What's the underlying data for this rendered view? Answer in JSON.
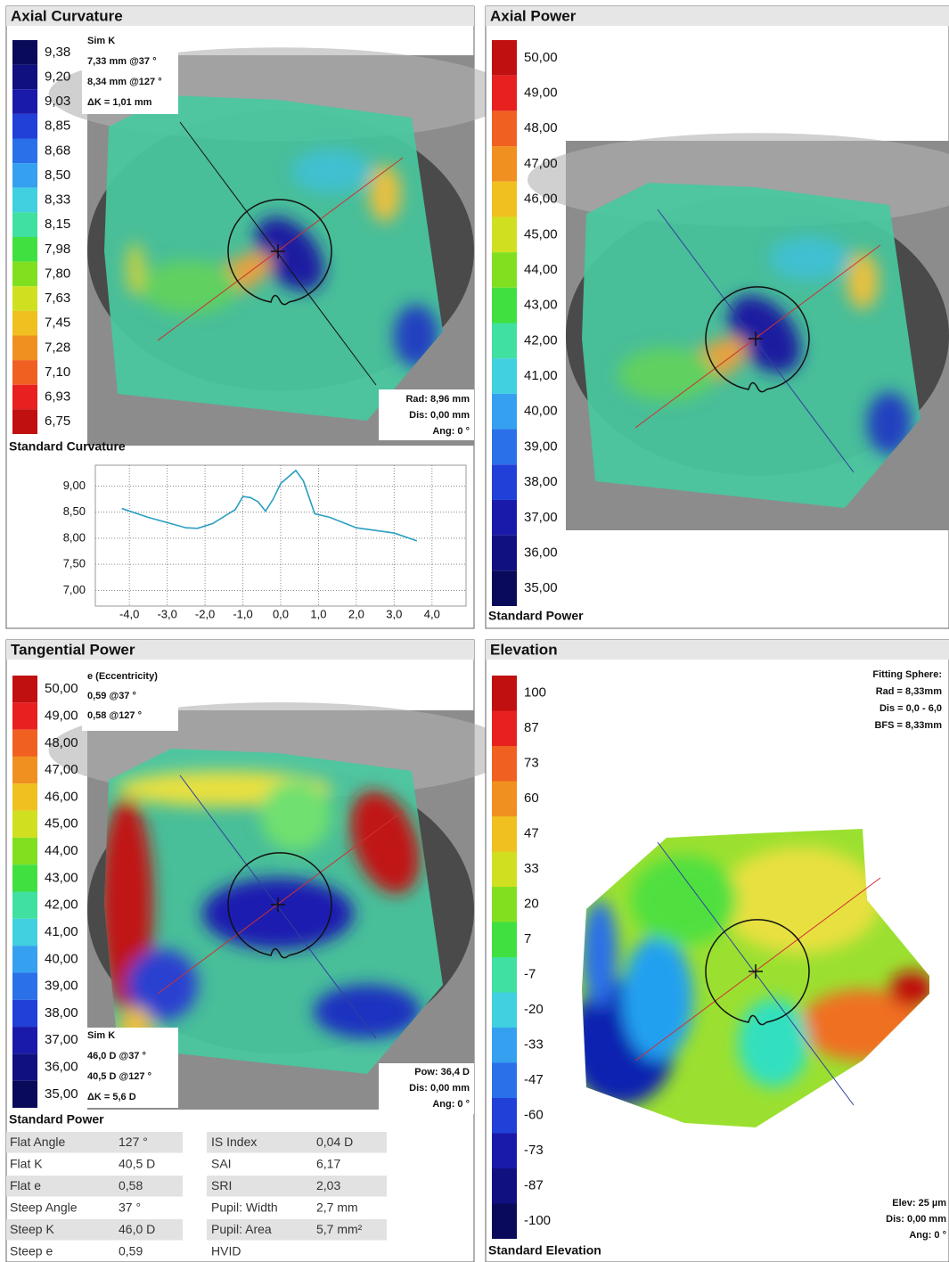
{
  "panels": [
    {
      "title": "Axial Curvature",
      "footer": "Standard Curvature",
      "legend": {
        "labels": [
          "9,38",
          "9,20",
          "9,03",
          "8,85",
          "8,68",
          "8,50",
          "8,33",
          "8,15",
          "7,98",
          "7,80",
          "7,63",
          "7,45",
          "7,28",
          "7,10",
          "6,93",
          "6,75"
        ],
        "colors": [
          "#0a0a5a",
          "#101080",
          "#1a1aaa",
          "#2040d8",
          "#2a70e8",
          "#35a0f0",
          "#40d0e0",
          "#40e0a0",
          "#40e040",
          "#80e020",
          "#d0e020",
          "#f0c020",
          "#f09020",
          "#f06020",
          "#e82020",
          "#c01010"
        ]
      },
      "notes": [
        [
          "Sim K",
          "7,33 mm @37 °",
          "8,34 mm @127 °",
          "ΔK = 1,01 mm"
        ],
        [
          "Rad: 8,96 mm",
          "Dis: 0,00 mm",
          "Ang: 0 °"
        ]
      ]
    },
    {
      "title": "Axial Power",
      "footer": "Standard Power",
      "legend": {
        "labels": [
          "50,00",
          "49,00",
          "48,00",
          "47,00",
          "46,00",
          "45,00",
          "44,00",
          "43,00",
          "42,00",
          "41,00",
          "40,00",
          "39,00",
          "38,00",
          "37,00",
          "36,00",
          "35,00"
        ],
        "colors": [
          "#c01010",
          "#e82020",
          "#f06020",
          "#f09020",
          "#f0c020",
          "#d0e020",
          "#80e020",
          "#40e040",
          "#40e0a0",
          "#40d0e0",
          "#35a0f0",
          "#2a70e8",
          "#2040d8",
          "#1a1aaa",
          "#101080",
          "#0a0a5a"
        ]
      },
      "notes": []
    },
    {
      "title": "Tangential Power",
      "footer": "Standard Power",
      "legend": {
        "labels": [
          "50,00",
          "49,00",
          "48,00",
          "47,00",
          "46,00",
          "45,00",
          "44,00",
          "43,00",
          "42,00",
          "41,00",
          "40,00",
          "39,00",
          "38,00",
          "37,00",
          "36,00",
          "35,00"
        ],
        "colors": [
          "#c01010",
          "#e82020",
          "#f06020",
          "#f09020",
          "#f0c020",
          "#d0e020",
          "#80e020",
          "#40e040",
          "#40e0a0",
          "#40d0e0",
          "#35a0f0",
          "#2a70e8",
          "#2040d8",
          "#1a1aaa",
          "#101080",
          "#0a0a5a"
        ]
      },
      "notes": [
        [
          "e (Eccentricity)",
          "0,59 @37 °",
          "0,58 @127 °"
        ],
        [
          "Sim K",
          "46,0 D @37 °",
          "40,5 D @127 °",
          "ΔK = 5,6 D"
        ],
        [
          "Pow: 36,4 D",
          "Dis: 0,00 mm",
          "Ang: 0 °"
        ]
      ]
    },
    {
      "title": "Elevation",
      "footer": "Standard Elevation",
      "legend": {
        "labels": [
          "100",
          "87",
          "73",
          "60",
          "47",
          "33",
          "20",
          "7",
          "-7",
          "-20",
          "-33",
          "-47",
          "-60",
          "-73",
          "-87",
          "-100"
        ],
        "colors": [
          "#c01010",
          "#e82020",
          "#f06020",
          "#f09020",
          "#f0c020",
          "#d0e020",
          "#80e020",
          "#40e040",
          "#40e0a0",
          "#40d0e0",
          "#35a0f0",
          "#2a70e8",
          "#2040d8",
          "#1a1aaa",
          "#101080",
          "#0a0a5a"
        ]
      },
      "notes": [
        [
          "Fitting Sphere:",
          "Rad = 8,33mm",
          "Dis = 0,0 - 6,0",
          "BFS = 8,33mm"
        ],
        [
          "Elev: 25 µm",
          "Dis: 0,00 mm",
          "Ang: 0 °"
        ]
      ]
    }
  ],
  "table": {
    "rows": [
      [
        "Flat Angle",
        "127 °",
        "IS Index",
        "0,04 D"
      ],
      [
        "Flat K",
        "40,5 D",
        "SAI",
        "6,17"
      ],
      [
        "Flat e",
        "0,58",
        "SRI",
        "2,03"
      ],
      [
        "Steep Angle",
        "37 °",
        "Pupil: Width",
        "2,7 mm"
      ],
      [
        "Steep K",
        "46,0 D",
        "Pupil: Area",
        "5,7 mm²"
      ],
      [
        "Steep e",
        "0,59",
        "HVID"
      ]
    ]
  },
  "chart_data": {
    "type": "line",
    "x": [
      -4.2,
      -3.5,
      -3.0,
      -2.5,
      -2.2,
      -1.8,
      -1.2,
      -1.0,
      -0.8,
      -0.6,
      -0.4,
      -0.2,
      0.0,
      0.4,
      0.6,
      0.9,
      1.3,
      2.0,
      3.0,
      3.6
    ],
    "values": [
      8.57,
      8.4,
      8.3,
      8.2,
      8.19,
      8.28,
      8.55,
      8.8,
      8.78,
      8.7,
      8.52,
      8.75,
      9.05,
      9.3,
      9.1,
      8.47,
      8.4,
      8.2,
      8.1,
      7.95
    ],
    "color": "#2a9fc0",
    "xlim": [
      -4.9,
      4.9
    ],
    "ylim": [
      6.7,
      9.4
    ],
    "xticks": [
      {
        "value": -4,
        "label": "-4,0"
      },
      {
        "value": -3,
        "label": "-3,0"
      },
      {
        "value": -2,
        "label": "-2,0"
      },
      {
        "value": -1,
        "label": "-1,0"
      },
      {
        "value": 0,
        "label": "0,0"
      },
      {
        "value": 1,
        "label": "1,0"
      },
      {
        "value": 2,
        "label": "2,0"
      },
      {
        "value": 3,
        "label": "3,0"
      },
      {
        "value": 4,
        "label": "4,0"
      }
    ],
    "yticks": [
      {
        "value": 7,
        "label": "7,00"
      },
      {
        "value": 7.5,
        "label": "7,50"
      },
      {
        "value": 8,
        "label": "8,00"
      },
      {
        "value": 8.5,
        "label": "8,50"
      },
      {
        "value": 9,
        "label": "9,00"
      }
    ],
    "grid": true
  }
}
